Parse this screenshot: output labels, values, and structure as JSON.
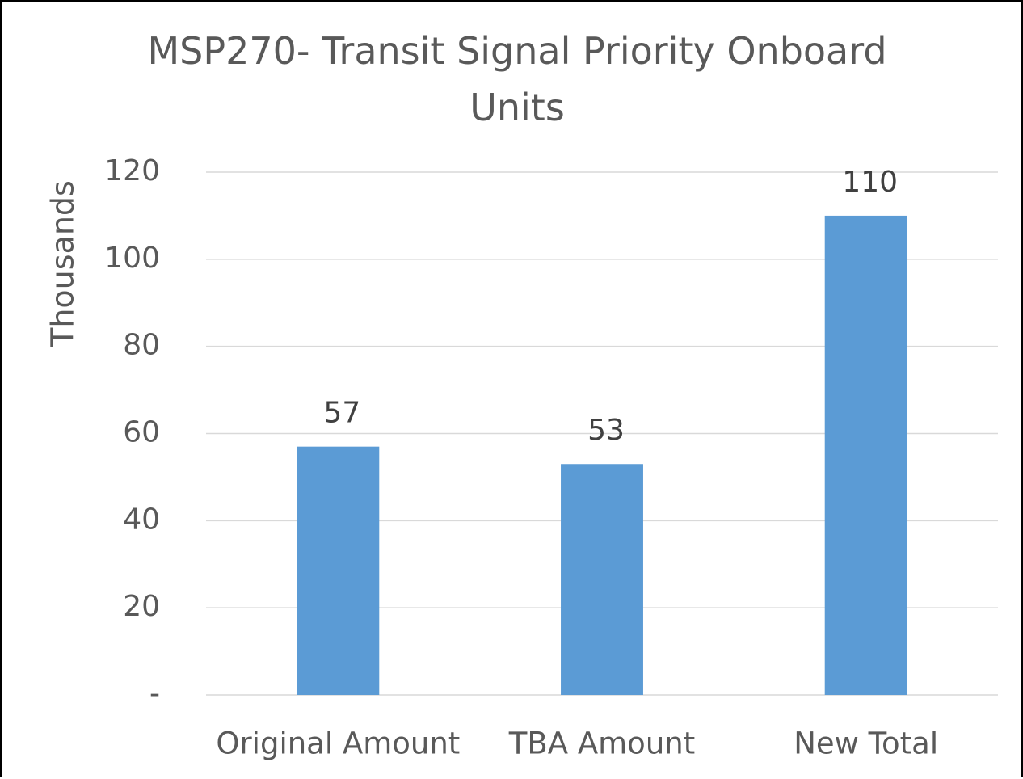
{
  "chart_data": {
    "type": "bar",
    "title": "MSP270- Transit Signal Priority Onboard Units",
    "y_axis_label": "Thousands",
    "categories": [
      "Original Amount",
      "TBA Amount",
      "New Total"
    ],
    "values": [
      57,
      53,
      110
    ],
    "color": "#5b9bd5",
    "ylim": [
      0,
      120
    ],
    "yticks": [
      {
        "value": 0,
        "label": "-"
      },
      20,
      40,
      60,
      80,
      100,
      120
    ],
    "grid": true
  }
}
